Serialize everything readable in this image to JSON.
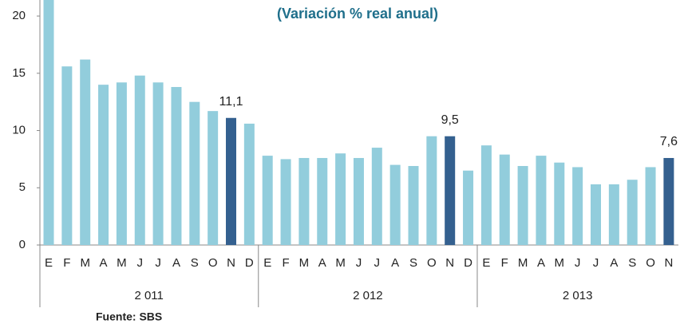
{
  "chart_data": {
    "type": "bar",
    "title": "(Variación % real anual)",
    "source": "Fuente: SBS",
    "ylim": [
      0,
      21.4
    ],
    "yticks": [
      0,
      5,
      10,
      15,
      20
    ],
    "groups": [
      {
        "label": "2 011",
        "categories": [
          "E",
          "F",
          "M",
          "A",
          "M",
          "J",
          "J",
          "A",
          "S",
          "O",
          "N",
          "D"
        ],
        "values": [
          21.4,
          15.6,
          16.2,
          14.0,
          14.2,
          14.8,
          14.2,
          13.8,
          12.5,
          11.7,
          11.1,
          10.6
        ],
        "value_labels": [
          null,
          null,
          null,
          null,
          null,
          null,
          null,
          null,
          null,
          null,
          "11,1",
          null
        ],
        "colors": [
          "#92cddc",
          "#92cddc",
          "#92cddc",
          "#92cddc",
          "#92cddc",
          "#92cddc",
          "#92cddc",
          "#92cddc",
          "#92cddc",
          "#92cddc",
          "#34608f",
          "#92cddc"
        ]
      },
      {
        "label": "2 012",
        "categories": [
          "E",
          "F",
          "M",
          "A",
          "M",
          "J",
          "J",
          "A",
          "S",
          "O",
          "N",
          "D"
        ],
        "values": [
          7.8,
          7.5,
          7.6,
          7.6,
          8.0,
          7.6,
          8.5,
          7.0,
          6.9,
          9.5,
          9.5,
          6.5
        ],
        "value_labels": [
          null,
          null,
          null,
          null,
          null,
          null,
          null,
          null,
          null,
          null,
          "9,5",
          null
        ],
        "colors": [
          "#92cddc",
          "#92cddc",
          "#92cddc",
          "#92cddc",
          "#92cddc",
          "#92cddc",
          "#92cddc",
          "#92cddc",
          "#92cddc",
          "#92cddc",
          "#34608f",
          "#92cddc"
        ]
      },
      {
        "label": "2 013",
        "categories": [
          "E",
          "F",
          "M",
          "A",
          "M",
          "J",
          "J",
          "A",
          "S",
          "O",
          "N"
        ],
        "values": [
          8.7,
          7.9,
          6.9,
          7.8,
          7.2,
          6.8,
          5.3,
          5.3,
          5.7,
          6.8,
          7.6
        ],
        "value_labels": [
          null,
          null,
          null,
          null,
          null,
          null,
          null,
          null,
          null,
          null,
          "7,6"
        ],
        "colors": [
          "#92cddc",
          "#92cddc",
          "#92cddc",
          "#92cddc",
          "#92cddc",
          "#92cddc",
          "#92cddc",
          "#92cddc",
          "#92cddc",
          "#92cddc",
          "#34608f"
        ]
      }
    ]
  }
}
